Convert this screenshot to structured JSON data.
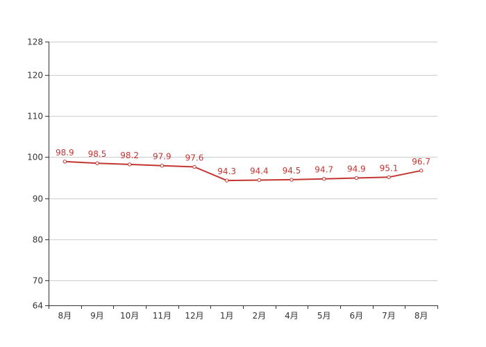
{
  "chart_data": {
    "type": "line",
    "title": "",
    "xlabel": "",
    "ylabel": "",
    "categories": [
      "8月",
      "9月",
      "10月",
      "11月",
      "12月",
      "1月",
      "2月",
      "4月",
      "5月",
      "6月",
      "7月",
      "8月"
    ],
    "series": [
      {
        "values": [
          98.9,
          98.5,
          98.2,
          97.9,
          97.6,
          94.3,
          94.4,
          94.5,
          94.7,
          94.9,
          95.1,
          96.7
        ],
        "color": "#c23531"
      }
    ],
    "ylim": [
      64,
      128
    ],
    "yticks": [
      64,
      70,
      80,
      90,
      100,
      110,
      120,
      128
    ],
    "grid": true,
    "legend": "none",
    "data_labels": true
  }
}
